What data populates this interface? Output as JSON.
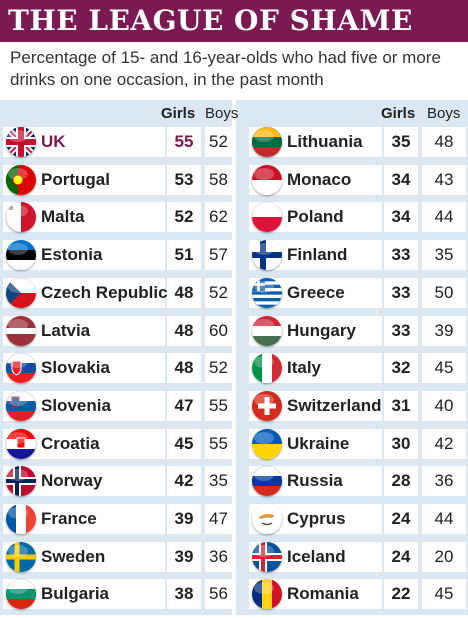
{
  "title": "THE LEAGUE OF SHAME",
  "subtitle": "Percentage of 15- and 16-year-olds who had five or more drinks on one occasion, in the past month",
  "headers": {
    "girls": "Girls",
    "boys": "Boys"
  },
  "chart_data": {
    "type": "table",
    "title": "THE LEAGUE OF SHAME",
    "subtitle": "Percentage of 15- and 16-year-olds who had five or more drinks on one occasion, in the past month",
    "columns": [
      "Girls",
      "Boys"
    ],
    "rows": [
      {
        "country": "UK",
        "girls": 55,
        "boys": 52,
        "flag": "uk",
        "highlight": true
      },
      {
        "country": "Portugal",
        "girls": 53,
        "boys": 58,
        "flag": "portugal"
      },
      {
        "country": "Malta",
        "girls": 52,
        "boys": 62,
        "flag": "malta"
      },
      {
        "country": "Estonia",
        "girls": 51,
        "boys": 57,
        "flag": "estonia"
      },
      {
        "country": "Czech Republic",
        "girls": 48,
        "boys": 52,
        "flag": "czech"
      },
      {
        "country": "Latvia",
        "girls": 48,
        "boys": 60,
        "flag": "latvia"
      },
      {
        "country": "Slovakia",
        "girls": 48,
        "boys": 52,
        "flag": "slovakia"
      },
      {
        "country": "Slovenia",
        "girls": 47,
        "boys": 55,
        "flag": "slovenia"
      },
      {
        "country": "Croatia",
        "girls": 45,
        "boys": 55,
        "flag": "croatia"
      },
      {
        "country": "Norway",
        "girls": 42,
        "boys": 35,
        "flag": "norway"
      },
      {
        "country": "France",
        "girls": 39,
        "boys": 47,
        "flag": "france"
      },
      {
        "country": "Sweden",
        "girls": 39,
        "boys": 36,
        "flag": "sweden"
      },
      {
        "country": "Bulgaria",
        "girls": 38,
        "boys": 56,
        "flag": "bulgaria"
      },
      {
        "country": "Lithuania",
        "girls": 35,
        "boys": 48,
        "flag": "lithuania"
      },
      {
        "country": "Monaco",
        "girls": 34,
        "boys": 43,
        "flag": "monaco"
      },
      {
        "country": "Poland",
        "girls": 34,
        "boys": 44,
        "flag": "poland"
      },
      {
        "country": "Finland",
        "girls": 33,
        "boys": 35,
        "flag": "finland"
      },
      {
        "country": "Greece",
        "girls": 33,
        "boys": 50,
        "flag": "greece"
      },
      {
        "country": "Hungary",
        "girls": 33,
        "boys": 39,
        "flag": "hungary"
      },
      {
        "country": "Italy",
        "girls": 32,
        "boys": 45,
        "flag": "italy"
      },
      {
        "country": "Switzerland",
        "girls": 31,
        "boys": 40,
        "flag": "switzerland"
      },
      {
        "country": "Ukraine",
        "girls": 30,
        "boys": 42,
        "flag": "ukraine"
      },
      {
        "country": "Russia",
        "girls": 28,
        "boys": 36,
        "flag": "russia"
      },
      {
        "country": "Cyprus",
        "girls": 24,
        "boys": 44,
        "flag": "cyprus"
      },
      {
        "country": "Iceland",
        "girls": 24,
        "boys": 20,
        "flag": "iceland"
      },
      {
        "country": "Romania",
        "girls": 22,
        "boys": 45,
        "flag": "romania"
      }
    ]
  },
  "colors": {
    "banner": "#7b1a52",
    "panel": "#dbe8f2",
    "highlight": "#7b1a52"
  }
}
